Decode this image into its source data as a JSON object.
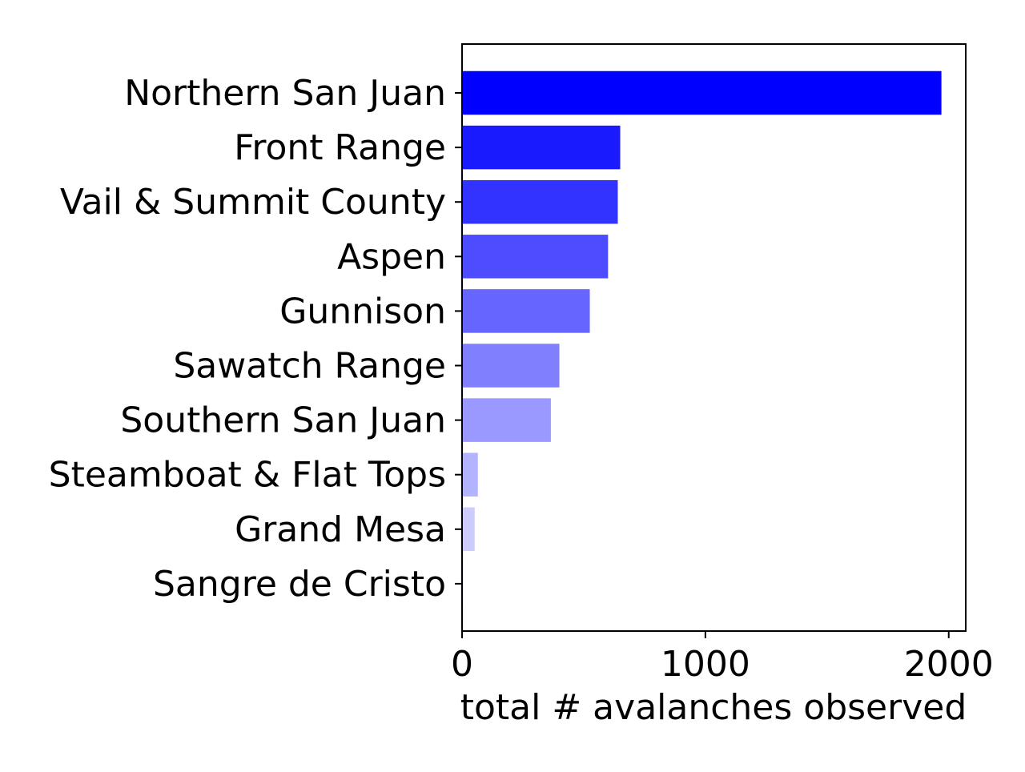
{
  "chart_data": {
    "type": "bar",
    "orientation": "horizontal",
    "categories": [
      "Northern San Juan",
      "Front Range",
      "Vail & Summit County",
      "Aspen",
      "Gunnison",
      "Sawatch Range",
      "Southern San Juan",
      "Steamboat & Flat Tops",
      "Grand Mesa",
      "Sangre de Cristo"
    ],
    "values": [
      1970,
      650,
      640,
      600,
      525,
      400,
      365,
      65,
      52,
      5
    ],
    "colors": [
      "#0000ff",
      "#1a1aff",
      "#3333ff",
      "#4d4dff",
      "#6666ff",
      "#8080ff",
      "#9999ff",
      "#b3b3ff",
      "#ccccff",
      "#e6e6ff"
    ],
    "title": "",
    "xlabel": "total # avalanches observed",
    "ylabel": "",
    "xlim": [
      0,
      2070
    ],
    "xticks": [
      0,
      1000,
      2000
    ],
    "xtick_labels": [
      "0",
      "1000",
      "2000"
    ],
    "grid": false,
    "legend": "none"
  }
}
